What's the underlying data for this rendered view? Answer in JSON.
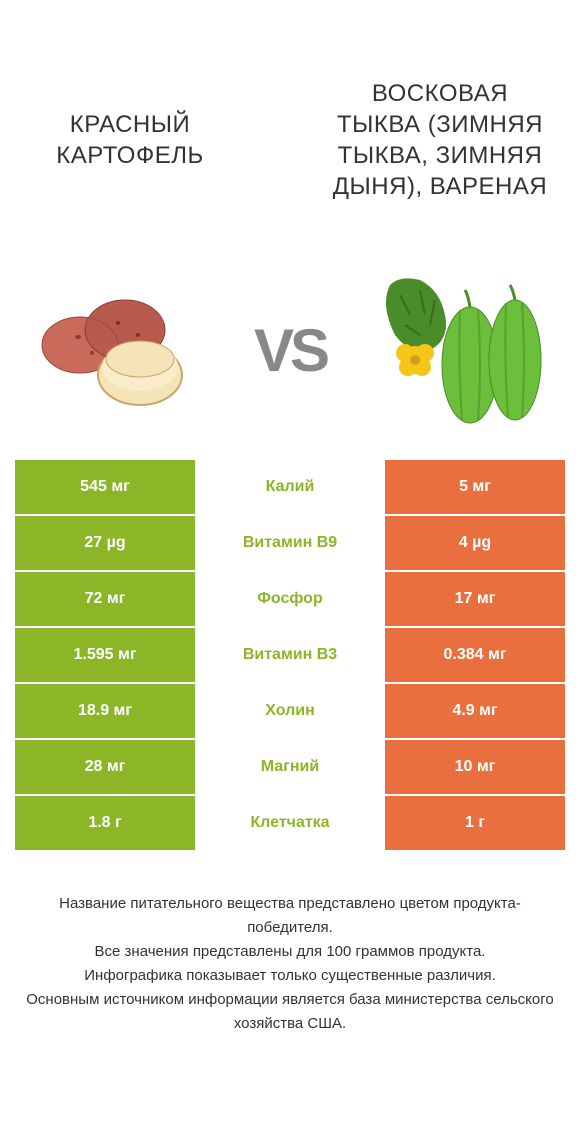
{
  "colors": {
    "left": "#8bb628",
    "right": "#e9703e",
    "mid_text_left_win": "#8bb628",
    "mid_text_right_win": "#e9703e"
  },
  "left_title": "КРАСНЫЙ КАРТОФЕЛЬ",
  "right_title": "ВОСКОВАЯ ТЫКВА (ЗИМНЯЯ ТЫКВА, ЗИМНЯЯ ДЫНЯ), ВАРЕНАЯ",
  "vs_label": "VS",
  "rows": [
    {
      "left": "545 мг",
      "mid": "Калий",
      "right": "5 мг",
      "winner": "left"
    },
    {
      "left": "27 µg",
      "mid": "Витамин B9",
      "right": "4 µg",
      "winner": "left"
    },
    {
      "left": "72 мг",
      "mid": "Фосфор",
      "right": "17 мг",
      "winner": "left"
    },
    {
      "left": "1.595 мг",
      "mid": "Витамин B3",
      "right": "0.384 мг",
      "winner": "left"
    },
    {
      "left": "18.9 мг",
      "mid": "Холин",
      "right": "4.9 мг",
      "winner": "left"
    },
    {
      "left": "28 мг",
      "mid": "Магний",
      "right": "10 мг",
      "winner": "left"
    },
    {
      "left": "1.8 г",
      "mid": "Клетчатка",
      "right": "1 г",
      "winner": "left"
    }
  ],
  "footer_lines": [
    "Название питательного вещества представлено цветом продукта-победителя.",
    "Все значения представлены для 100 граммов продукта.",
    "Инфографика показывает только существенные различия.",
    "Основным источником информации является база министерства сельского хозяйства США."
  ]
}
